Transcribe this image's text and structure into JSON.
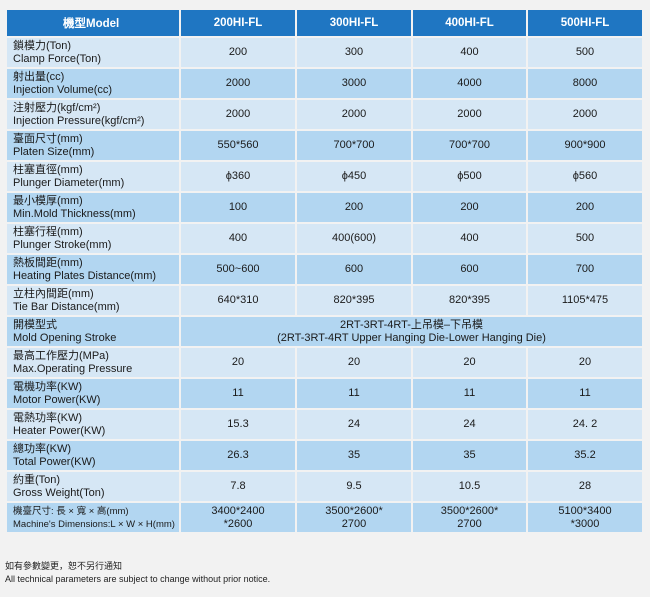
{
  "header": {
    "label": "機型Model",
    "models": [
      "200HI-FL",
      "300HI-FL",
      "400HI-FL",
      "500HI-FL"
    ]
  },
  "rows": [
    {
      "cn": "鎖模力(Ton)",
      "en": "Clamp Force(Ton)",
      "values": [
        "200",
        "300",
        "400",
        "500"
      ]
    },
    {
      "cn": "射出量(cc)",
      "en": "Injection Volume(cc)",
      "values": [
        "2000",
        "3000",
        "4000",
        "8000"
      ]
    },
    {
      "cn": "注射壓力(kgf/cm²)",
      "en": "Injection Pressure(kgf/cm²)",
      "values": [
        "2000",
        "2000",
        "2000",
        "2000"
      ]
    },
    {
      "cn": "臺面尺寸(mm)",
      "en": "Platen Size(mm)",
      "values": [
        "550*560",
        "700*700",
        "700*700",
        "900*900"
      ]
    },
    {
      "cn": "柱塞直徑(mm)",
      "en": "Plunger Diameter(mm)",
      "values": [
        "ϕ360",
        "ϕ450",
        "ϕ500",
        "ϕ560"
      ]
    },
    {
      "cn": "最小模厚(mm)",
      "en": "Min.Mold Thickness(mm)",
      "values": [
        "100",
        "200",
        "200",
        "200"
      ]
    },
    {
      "cn": "柱塞行程(mm)",
      "en": "Plunger Stroke(mm)",
      "values": [
        "400",
        "400(600)",
        "400",
        "500"
      ]
    },
    {
      "cn": "熱板間距(mm)",
      "en": "Heating Plates Distance(mm)",
      "values": [
        "500~600",
        "600",
        "600",
        "700"
      ]
    },
    {
      "cn": "立柱內間距(mm)",
      "en": "Tie Bar Distance(mm)",
      "values": [
        "640*310",
        "820*395",
        "820*395",
        "1105*475"
      ]
    }
  ],
  "opening_stroke": {
    "cn": "開模型式",
    "en": "Mold Opening Stroke",
    "line1": "2RT-3RT-4RT-上吊模–下吊模",
    "line2": "(2RT-3RT-4RT Upper Hanging Die-Lower Hanging Die)"
  },
  "rows2": [
    {
      "cn": "最高工作壓力(MPa)",
      "en": "Max.Operating Pressure",
      "values": [
        "20",
        "20",
        "20",
        "20"
      ]
    },
    {
      "cn": "電機功率(KW)",
      "en": "Motor Power(KW)",
      "values": [
        "11",
        "11",
        "11",
        "11"
      ]
    },
    {
      "cn": "電熱功率(KW)",
      "en": "Heater Power(KW)",
      "values": [
        "15.3",
        "24",
        "24",
        "24. 2"
      ]
    },
    {
      "cn": "總功率(KW)",
      "en": "Total Power(KW)",
      "values": [
        "26.3",
        "35",
        "35",
        "35.2"
      ]
    },
    {
      "cn": "約重(Ton)",
      "en": "Gross Weight(Ton)",
      "values": [
        "7.8",
        "9.5",
        "10.5",
        "28"
      ]
    }
  ],
  "dimensions": {
    "cn": "機臺尺寸: 長 × 寬 × 高(mm)",
    "en": "Machine's Dimensions:L × W × H(mm)",
    "values": [
      [
        "3400*2400",
        "*2600"
      ],
      [
        "3500*2600*",
        "2700"
      ],
      [
        "3500*2600*",
        "2700"
      ],
      [
        "5100*3400",
        "*3000"
      ]
    ]
  },
  "notes": {
    "cn": "如有參數變更，恕不另行通知",
    "en": "All technical parameters are subject to change without prior notice."
  }
}
